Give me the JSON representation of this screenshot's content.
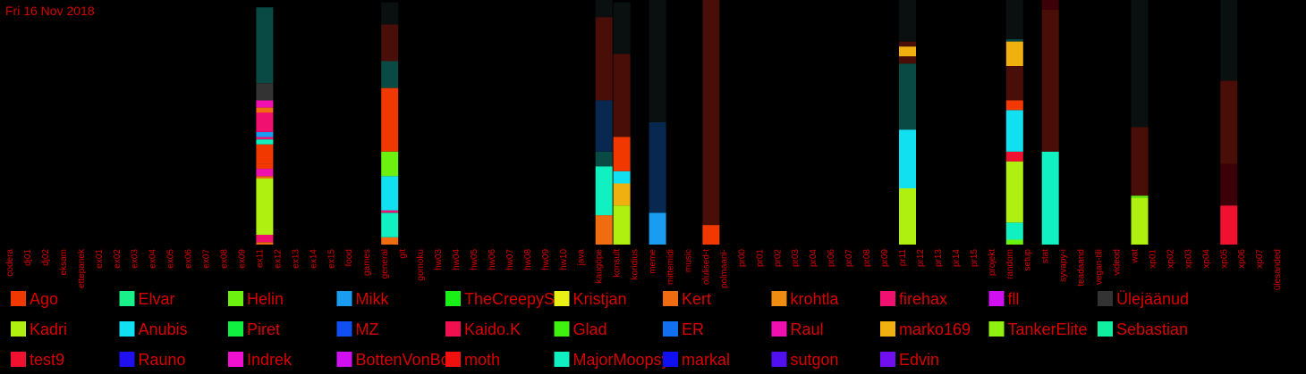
{
  "date_label": "Fri 16 Nov 2018",
  "chart_data": {
    "type": "bar",
    "stacked": true,
    "ylim": [
      0,
      100
    ],
    "categories": [
      "codera",
      "dj01",
      "dj02",
      "eksam",
      "ettepanek",
      "ex01",
      "ex02",
      "ex03",
      "ex04",
      "ex05",
      "ex06",
      "ex07",
      "ex08",
      "ex09",
      "ex11",
      "ex12",
      "ex13",
      "ex14",
      "ex15",
      "food",
      "games",
      "general",
      "git",
      "gomoku",
      "hw03",
      "hw04",
      "hw05",
      "hw06",
      "hw07",
      "hw08",
      "hw09",
      "hw10",
      "java",
      "kaugöpe",
      "konsult",
      "koridius",
      "meme",
      "mittemidi",
      "music",
      "olulised-t",
      "polmaani-",
      "pr00",
      "pr01",
      "pr02",
      "pr03",
      "pr04",
      "pr06",
      "pr07",
      "pr08",
      "pr09",
      "pr11",
      "pr12",
      "pr13",
      "pr14",
      "pr15",
      "projekt",
      "random",
      "setup",
      "stat",
      "syvapy-i",
      "teadaand",
      "vegan-tili",
      "videod",
      "wat",
      "xp01",
      "xp02",
      "xp03",
      "xp04",
      "xp05",
      "xp06",
      "xp07",
      "ülesanded"
    ],
    "bars": {
      "ex11": [
        [
          "Kert",
          1
        ],
        [
          "firehax",
          3
        ],
        [
          "Kadri",
          23
        ],
        [
          "Kert",
          1
        ],
        [
          "Raul",
          3
        ],
        [
          "Ago",
          2
        ],
        [
          "Ago",
          8
        ],
        [
          "MajorMoopsy",
          2
        ],
        [
          "firehax",
          1
        ],
        [
          "Mikk",
          2
        ],
        [
          "firehax",
          8
        ],
        [
          "Kert",
          2
        ],
        [
          "Raul",
          3
        ],
        [
          "Ülejäänud",
          7
        ],
        [
          "other",
          31
        ]
      ],
      "general": [
        [
          "Kert",
          3
        ],
        [
          "MajorMoopsy",
          10
        ],
        [
          "firehax",
          1
        ],
        [
          "Anubis",
          14
        ],
        [
          "Helin",
          10
        ],
        [
          "Ago",
          26
        ],
        [
          "other",
          11
        ],
        [
          "other2",
          15
        ],
        [
          "other3",
          9
        ]
      ],
      "kaugöpe": [
        [
          "Kert",
          12
        ],
        [
          "MajorMoopsy",
          20
        ],
        [
          "other",
          6
        ],
        [
          "other4",
          21
        ],
        [
          "other2",
          34
        ],
        [
          "other3",
          7
        ]
      ],
      "konsult": [
        [
          "Kadri",
          16
        ],
        [
          "marko169",
          9
        ],
        [
          "Anubis",
          5
        ],
        [
          "Ago",
          14
        ],
        [
          "other2",
          34
        ],
        [
          "other3",
          21
        ]
      ],
      "meme": [
        [
          "Mikk",
          13
        ],
        [
          "other4",
          37
        ],
        [
          "other3",
          50
        ]
      ],
      "olulised-t": [
        [
          "Ago",
          8
        ],
        [
          "other2",
          92
        ]
      ],
      "pr11": [
        [
          "Kadri",
          23
        ],
        [
          "Anubis",
          24
        ],
        [
          "other",
          27
        ],
        [
          "other2",
          3
        ],
        [
          "marko169",
          4
        ],
        [
          "other2",
          2
        ],
        [
          "other3",
          17
        ]
      ],
      "random": [
        [
          "Helin",
          2
        ],
        [
          "MajorMoopsy",
          7
        ],
        [
          "Kadri",
          25
        ],
        [
          "test9",
          4
        ],
        [
          "Anubis",
          17
        ],
        [
          "Ago",
          4
        ],
        [
          "other2",
          14
        ],
        [
          "marko169",
          10
        ],
        [
          "other",
          1
        ],
        [
          "other3",
          16
        ]
      ],
      "stat": [
        [
          "MajorMoopsy",
          38
        ],
        [
          "other2",
          58
        ],
        [
          "other2b",
          4
        ]
      ],
      "wat": [
        [
          "Kadri",
          19
        ],
        [
          "Helin",
          1
        ],
        [
          "other2",
          28
        ],
        [
          "other3",
          52
        ]
      ],
      "xp05": [
        [
          "test9",
          16
        ],
        [
          "other2b",
          17
        ],
        [
          "other2",
          34
        ],
        [
          "other3",
          33
        ]
      ]
    }
  },
  "legend": [
    {
      "name": "Ago",
      "color": "#f03800"
    },
    {
      "name": "Elvar",
      "color": "#19f08a"
    },
    {
      "name": "Helin",
      "color": "#6cf010"
    },
    {
      "name": "Mikk",
      "color": "#1a9df0"
    },
    {
      "name": "TheCreepySh",
      "color": "#18f018"
    },
    {
      "name": "Kristjan",
      "color": "#e8f018"
    },
    {
      "name": "Kert",
      "color": "#f06c10"
    },
    {
      "name": "krohtla",
      "color": "#f08c10"
    },
    {
      "name": "firehax",
      "color": "#f01070"
    },
    {
      "name": "fll",
      "color": "#d010f0"
    },
    {
      "name": "Ülejäänud",
      "color": "#333333"
    },
    {
      "name": "Kadri",
      "color": "#b0f010"
    },
    {
      "name": "Anubis",
      "color": "#10e0f0"
    },
    {
      "name": "Piret",
      "color": "#10f040"
    },
    {
      "name": "MZ",
      "color": "#1050f0"
    },
    {
      "name": "Kaido.K",
      "color": "#f01050"
    },
    {
      "name": "Glad",
      "color": "#40f010"
    },
    {
      "name": "ER",
      "color": "#1070f0"
    },
    {
      "name": "Raul",
      "color": "#f010b0"
    },
    {
      "name": "marko169",
      "color": "#f0b010"
    },
    {
      "name": "TankerElite",
      "color": "#90f010"
    },
    {
      "name": "Sebastian",
      "color": "#10f0a0"
    },
    {
      "name": "test9",
      "color": "#f01030"
    },
    {
      "name": "Rauno",
      "color": "#2010f0"
    },
    {
      "name": "Indrek",
      "color": "#f010d0"
    },
    {
      "name": "BottenVonBot",
      "color": "#d010f0"
    },
    {
      "name": "moth",
      "color": "#f01010"
    },
    {
      "name": "MajorMoopsy",
      "color": "#10f0c0"
    },
    {
      "name": "markal",
      "color": "#1010f0"
    },
    {
      "name": "sutgon",
      "color": "#5010f0"
    },
    {
      "name": "Edvin",
      "color": "#7010f0"
    }
  ],
  "colors": {
    "text": "#d80000",
    "other": "#0a4a44",
    "other2": "#4a0e08",
    "other2b": "#3c0008",
    "other3": "#0a0f0f",
    "other4": "#082850"
  }
}
